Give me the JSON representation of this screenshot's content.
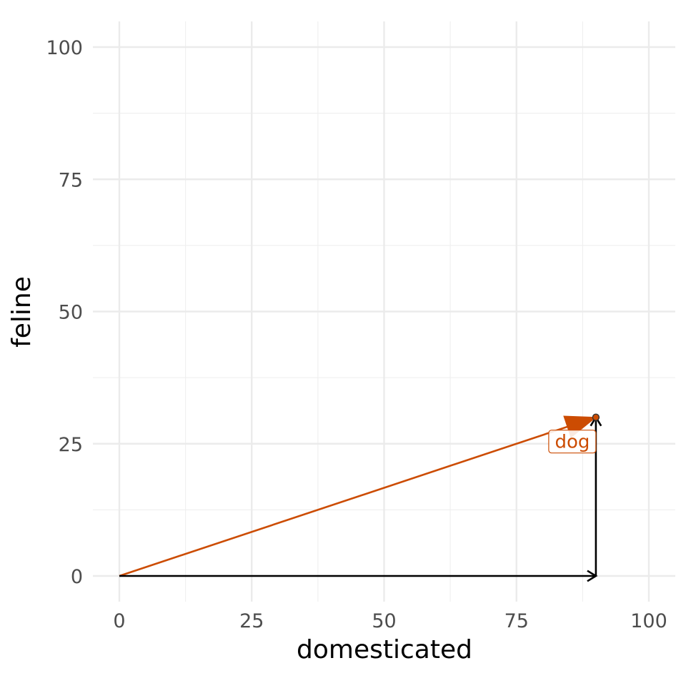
{
  "chart_data": {
    "type": "vector",
    "xlabel": "domesticated",
    "ylabel": "feline",
    "xlim": [
      0,
      100
    ],
    "ylim": [
      0,
      100
    ],
    "x_ticks": [
      0,
      25,
      50,
      75,
      100
    ],
    "y_ticks": [
      0,
      25,
      50,
      75,
      100
    ],
    "x_tick_labels": [
      "0",
      "25",
      "50",
      "75",
      "100"
    ],
    "y_tick_labels": [
      "0",
      "25",
      "50",
      "75",
      "100"
    ],
    "grid": true,
    "point": {
      "label": "dog",
      "x": 90,
      "y": 30
    },
    "vectors": [
      {
        "name": "",
        "from": [
          0,
          0
        ],
        "to": [
          90,
          30
        ],
        "color": "#cc4c02"
      },
      {
        "name": "",
        "from": [
          0,
          0
        ],
        "to": [
          90,
          0
        ],
        "color": "#000000"
      },
      {
        "name": "",
        "from": [
          90,
          0
        ],
        "to": [
          90,
          30
        ],
        "color": "#000000"
      }
    ],
    "colors": {
      "accent": "#cc4c02",
      "label_text": "#cc4c02",
      "component": "#000000"
    }
  }
}
